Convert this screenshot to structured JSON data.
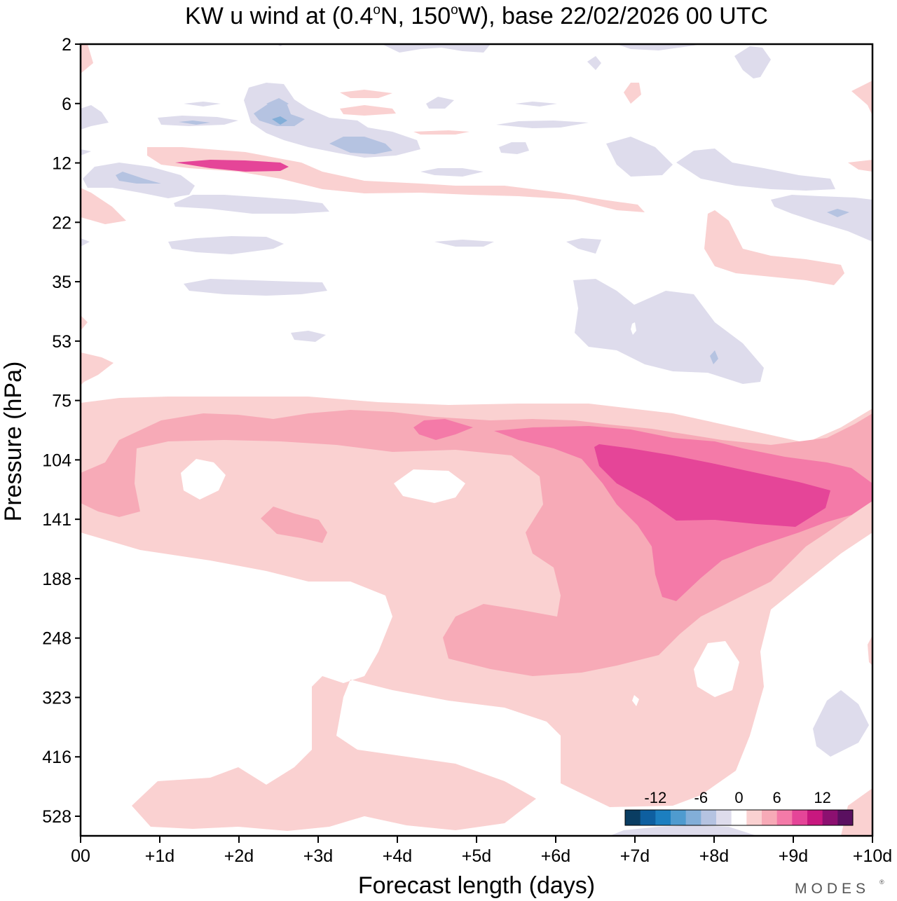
{
  "chart_data": {
    "type": "heatmap",
    "title_main": "KW u wind at (0.4",
    "title_lat": "N, 150",
    "title_lon": "W),  base 22/02/2026  00 UTC",
    "title_deg": "o",
    "xlabel": "Forecast length (days)",
    "ylabel": "Pressure (hPa)",
    "x_ticks": [
      "00",
      "+1d",
      "+2d",
      "+3d",
      "+4d",
      "+5d",
      "+6d",
      "+7d",
      "+8d",
      "+9d",
      "+10d"
    ],
    "xlim": [
      0,
      10
    ],
    "y_ticks": [
      "2",
      "6",
      "12",
      "22",
      "35",
      "53",
      "75",
      "104",
      "141",
      "188",
      "248",
      "323",
      "416",
      "528"
    ],
    "y_scale": "log",
    "colorbar": {
      "tick_labels": [
        "-12",
        "-6",
        "0",
        "6",
        "12"
      ],
      "levels": [
        "-16 to -14",
        "-14 to -12",
        "-12 to -10",
        "-10 to -8",
        "-8 to -6",
        "-6 to -4",
        "-4 to -2",
        "-2 to 2",
        "2 to 4",
        "4 to 6",
        "6 to 8",
        "8 to 10",
        "10 to 12",
        "12 to 14",
        "14 to 16"
      ],
      "colors": [
        "#0a3d62",
        "#0e5fa0",
        "#1c7fc0",
        "#4f9bcf",
        "#82aed8",
        "#b5c3e1",
        "#dedcec",
        "#ffffff",
        "#fad1d1",
        "#f7aab7",
        "#f47aa8",
        "#e54598",
        "#c8187f",
        "#8c1070",
        "#5a1060"
      ]
    },
    "field_summary": [
      {
        "level": "2 to 4",
        "region": "75-416 hPa band, +0d to +10d; 416-528 hPa, +1d to +6d"
      },
      {
        "level": "4 to 6",
        "region": "~80-110 hPa, +0d to +10d; 188-280 hPa, +4.6d to +8.5d"
      },
      {
        "level": "6 to 8",
        "region": "~90-190 hPa, +6d to +10d"
      },
      {
        "level": "8 to 10",
        "region": "~100-140 hPa, +6.5d to +9.5d"
      },
      {
        "level": "-4 to -2",
        "region": "6-22 hPa scattered; 35-60 hPa, +6.2d to +8.7d; 340-420 hPa, +9.3d to +10d"
      }
    ]
  },
  "branding": {
    "logo": "MODES",
    "reg": "®"
  }
}
